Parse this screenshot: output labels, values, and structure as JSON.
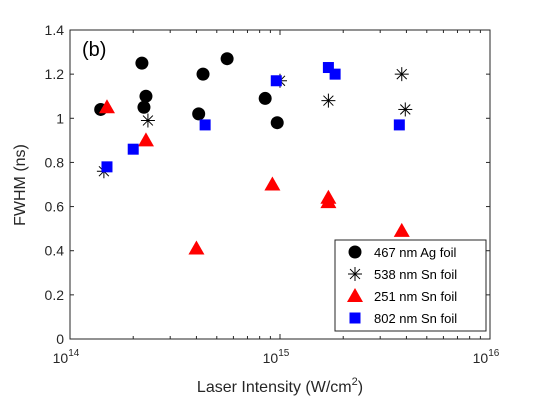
{
  "chart_data": {
    "type": "scatter",
    "panel_label": "(b)",
    "xlabel": "Laser Intensity (W/cm",
    "xlabel_sup": "2",
    "xlabel_end": ")",
    "ylabel": "FWHM (ns)",
    "xscale": "log",
    "xlim": [
      100000000000000.0,
      1e+16
    ],
    "ylim": [
      0,
      1.4
    ],
    "x_ticks": [
      {
        "base": "10",
        "exp": "14",
        "value": 100000000000000.0
      },
      {
        "base": "10",
        "exp": "15",
        "value": 1000000000000000.0
      },
      {
        "base": "10",
        "exp": "16",
        "value": 1e+16
      }
    ],
    "y_ticks": [
      {
        "label": "0",
        "value": 0
      },
      {
        "label": "0.2",
        "value": 0.2
      },
      {
        "label": "0.4",
        "value": 0.4
      },
      {
        "label": "0.6",
        "value": 0.6
      },
      {
        "label": "0.8",
        "value": 0.8
      },
      {
        "label": "1",
        "value": 1.0
      },
      {
        "label": "1.2",
        "value": 1.2
      },
      {
        "label": "1.4",
        "value": 1.4
      }
    ],
    "grid": false,
    "legend_position": "bottom-right",
    "series": [
      {
        "name": "467 nm Ag foil",
        "marker": "circle",
        "color": "#000000",
        "points": [
          [
            140000000000000.0,
            1.04
          ],
          [
            220000000000000.0,
            1.25
          ],
          [
            230000000000000.0,
            1.1
          ],
          [
            225000000000000.0,
            1.05
          ],
          [
            410000000000000.0,
            1.02
          ],
          [
            430000000000000.0,
            1.2
          ],
          [
            560000000000000.0,
            1.27
          ],
          [
            850000000000000.0,
            1.09
          ],
          [
            970000000000000.0,
            0.98
          ]
        ]
      },
      {
        "name": "538 nm Sn foil",
        "marker": "asterisk",
        "color": "#000000",
        "points": [
          [
            145000000000000.0,
            0.76
          ],
          [
            235000000000000.0,
            0.99
          ],
          [
            1000000000000000.0,
            1.17
          ],
          [
            1700000000000000.0,
            1.08
          ],
          [
            3800000000000000.0,
            1.2
          ],
          [
            3950000000000000.0,
            1.04
          ]
        ]
      },
      {
        "name": "251 nm Sn foil",
        "marker": "triangle",
        "color": "#ff0000",
        "points": [
          [
            150000000000000.0,
            1.05
          ],
          [
            230000000000000.0,
            0.9
          ],
          [
            400000000000000.0,
            0.41
          ],
          [
            920000000000000.0,
            0.7
          ],
          [
            1700000000000000.0,
            0.64
          ],
          [
            1700000000000000.0,
            0.62
          ],
          [
            3800000000000000.0,
            0.49
          ]
        ]
      },
      {
        "name": "802 nm Sn foil",
        "marker": "square",
        "color": "#0000ff",
        "points": [
          [
            150000000000000.0,
            0.78
          ],
          [
            200000000000000.0,
            0.86
          ],
          [
            440000000000000.0,
            0.97
          ],
          [
            960000000000000.0,
            1.17
          ],
          [
            1700000000000000.0,
            1.23
          ],
          [
            1830000000000000.0,
            1.2
          ],
          [
            3700000000000000.0,
            0.97
          ]
        ]
      }
    ]
  }
}
